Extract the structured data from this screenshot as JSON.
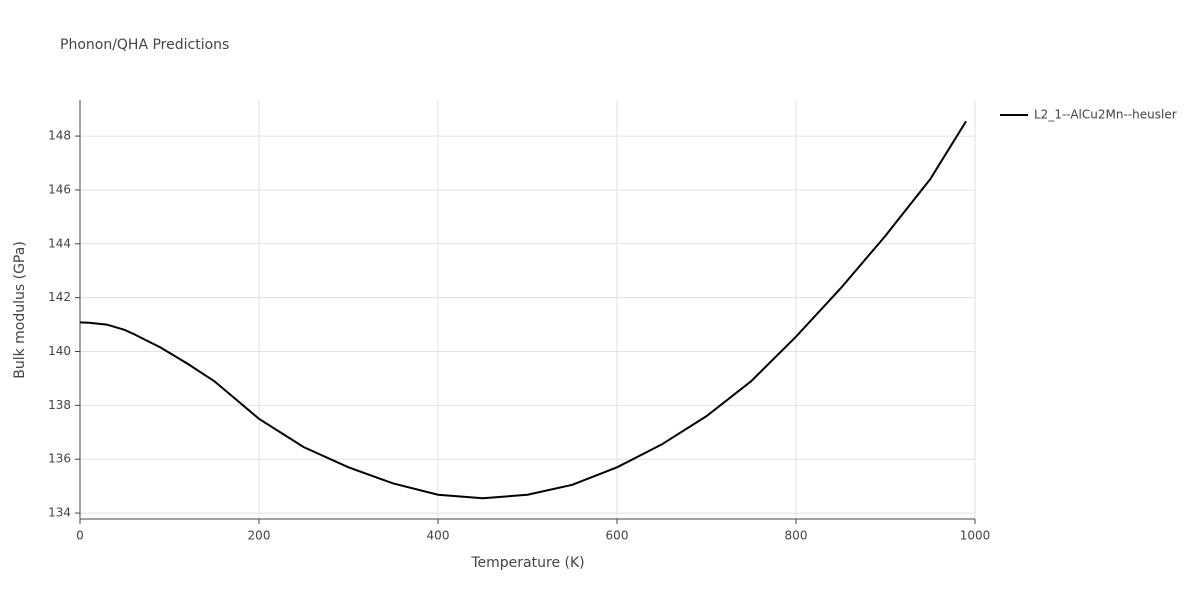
{
  "chart_data": {
    "type": "line",
    "title": "Phonon/QHA Predictions",
    "x_label": "Temperature (K)",
    "y_label": "Bulk modulus (GPa)",
    "x": [
      0,
      10,
      30,
      50,
      60,
      90,
      120,
      150,
      200,
      250,
      300,
      350,
      400,
      450,
      500,
      550,
      600,
      650,
      700,
      750,
      800,
      850,
      900,
      950,
      990
    ],
    "series": [
      {
        "name": "L2_1--AlCu2Mn--heusler",
        "color": "#000000",
        "values": [
          141.08,
          141.07,
          141.0,
          140.8,
          140.65,
          140.15,
          139.55,
          138.9,
          137.5,
          136.45,
          135.7,
          135.1,
          134.68,
          134.55,
          134.68,
          135.05,
          135.7,
          136.55,
          137.6,
          138.9,
          140.55,
          142.35,
          144.3,
          146.4,
          148.55
        ]
      }
    ],
    "xlim": [
      0,
      1000
    ],
    "xticks": [
      0,
      200,
      400,
      600,
      800,
      1000
    ],
    "ylim": [
      133.78,
      149.34
    ],
    "yticks": [
      134,
      136,
      138,
      140,
      142,
      144,
      146,
      148
    ],
    "grid": true,
    "legend": "right"
  }
}
